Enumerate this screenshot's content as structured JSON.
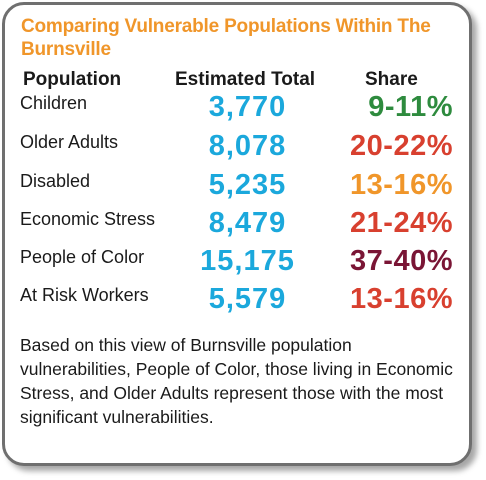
{
  "title": "Comparing Vulnerable Populations Within The Burnsville",
  "headers": {
    "population": "Population",
    "estimated_total": "Estimated Total",
    "share": "Share"
  },
  "rows": [
    {
      "population": "Children",
      "estimated_total": "3,770",
      "share": "9-11%"
    },
    {
      "population": "Older Adults",
      "estimated_total": "8,078",
      "share": "20-22%"
    },
    {
      "population": "Disabled",
      "estimated_total": "5,235",
      "share": "13-16%"
    },
    {
      "population": "Economic Stress",
      "estimated_total": "8,479",
      "share": "21-24%"
    },
    {
      "population": "People of Color",
      "estimated_total": "15,175",
      "share": "37-40%"
    },
    {
      "population": "At Risk Workers",
      "estimated_total": "5,579",
      "share": "13-16%"
    }
  ],
  "note": "Based on this view of Burnsville population vulnerabilities, People of Color, those living in Economic Stress, and Older Adults represent those with the most significant vulnerabilities.",
  "colors": {
    "title": "#f0962a",
    "estimated_total": "#1ba8dc",
    "share": [
      "#2e8b3e",
      "#d8402f",
      "#f0962a",
      "#d8402f",
      "#7a1535",
      "#d8402f"
    ]
  }
}
